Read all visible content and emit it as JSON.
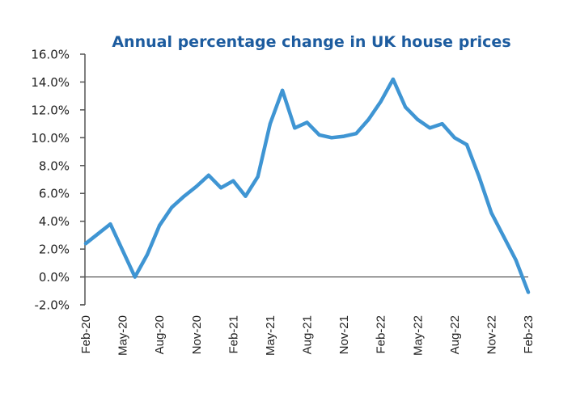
{
  "chart_data": {
    "type": "line",
    "title": "Annual percentage change in UK house prices",
    "xlabel": "",
    "ylabel": "",
    "ylim": [
      -2,
      16
    ],
    "y_ticks": [
      -2,
      0,
      2,
      4,
      6,
      8,
      10,
      12,
      14,
      16
    ],
    "y_tick_labels": [
      "-2.0%",
      "0.0%",
      "2.0%",
      "4.0%",
      "6.0%",
      "8.0%",
      "10.0%",
      "12.0%",
      "14.0%",
      "16.0%"
    ],
    "x_tick_labels": [
      "Feb-20",
      "May-20",
      "Aug-20",
      "Nov-20",
      "Feb-21",
      "May-21",
      "Aug-21",
      "Nov-21",
      "Feb-22",
      "May-22",
      "Aug-22",
      "Nov-22",
      "Feb-23"
    ],
    "x_tick_every_months": 3,
    "grid": false,
    "legend": "none",
    "colors": {
      "line": "#3f95d3",
      "title": "#1d5c9f",
      "axis": "#555555"
    },
    "series": [
      {
        "name": "Annual percentage change",
        "x": [
          "Feb-20",
          "Mar-20",
          "Apr-20",
          "May-20",
          "Jun-20",
          "Jul-20",
          "Aug-20",
          "Sep-20",
          "Oct-20",
          "Nov-20",
          "Dec-20",
          "Jan-21",
          "Feb-21",
          "Mar-21",
          "Apr-21",
          "May-21",
          "Jun-21",
          "Jul-21",
          "Aug-21",
          "Sep-21",
          "Oct-21",
          "Nov-21",
          "Dec-21",
          "Jan-22",
          "Feb-22",
          "Mar-22",
          "Apr-22",
          "May-22",
          "Jun-22",
          "Jul-22",
          "Aug-22",
          "Sep-22",
          "Oct-22",
          "Nov-22",
          "Dec-22",
          "Jan-23",
          "Feb-23"
        ],
        "values": [
          2.4,
          3.1,
          3.8,
          1.9,
          0.0,
          1.6,
          3.7,
          5.0,
          5.8,
          6.5,
          7.3,
          6.4,
          6.9,
          5.8,
          7.2,
          11.0,
          13.4,
          10.7,
          11.1,
          10.2,
          10.0,
          10.1,
          10.3,
          11.3,
          12.6,
          14.2,
          12.2,
          11.3,
          10.7,
          11.0,
          10.0,
          9.5,
          7.2,
          4.6,
          2.9,
          1.2,
          -1.1
        ]
      }
    ]
  }
}
